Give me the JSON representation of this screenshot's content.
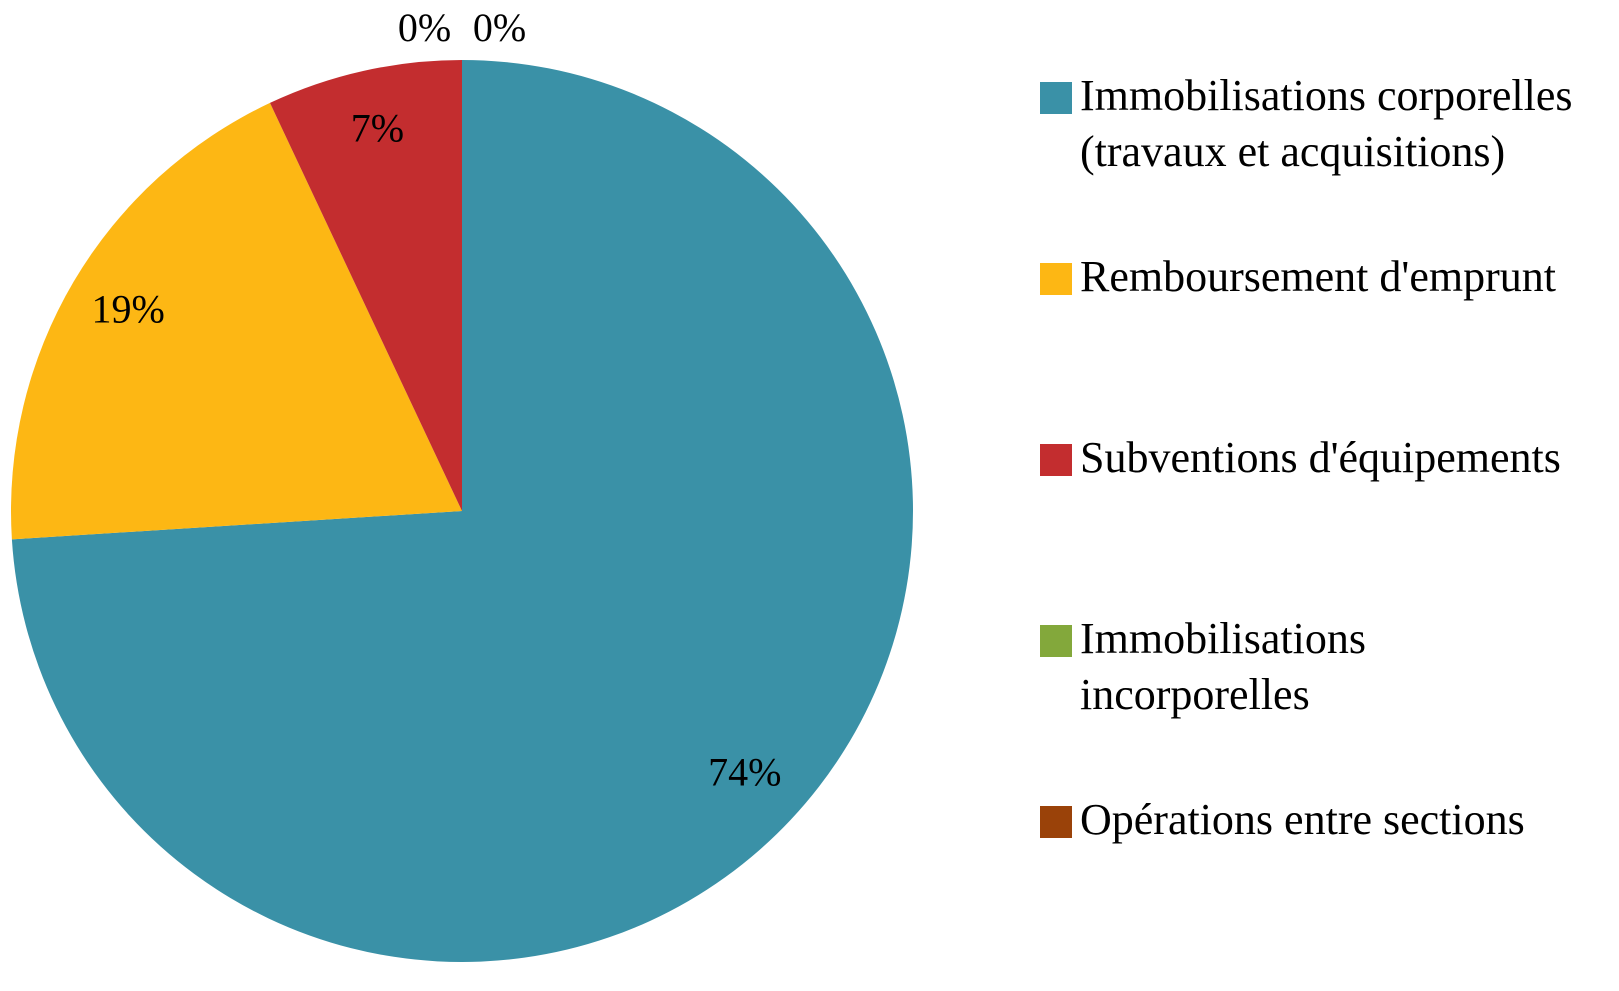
{
  "chart_data": {
    "type": "pie",
    "categories": [
      "Immobilisations corporelles (travaux et acquisitions)",
      "Remboursement d'emprunt",
      "Subventions d'équipements",
      "Immobilisations incorporelles",
      "Opérations entre sections"
    ],
    "values": [
      74,
      19,
      7,
      0,
      0
    ],
    "value_labels": [
      "74%",
      "19%",
      "7%",
      "0%",
      "0%"
    ],
    "colors": [
      "#3a91a7",
      "#fdb714",
      "#c32d2f",
      "#83a83b",
      "#9a4209"
    ],
    "legend": "right"
  }
}
